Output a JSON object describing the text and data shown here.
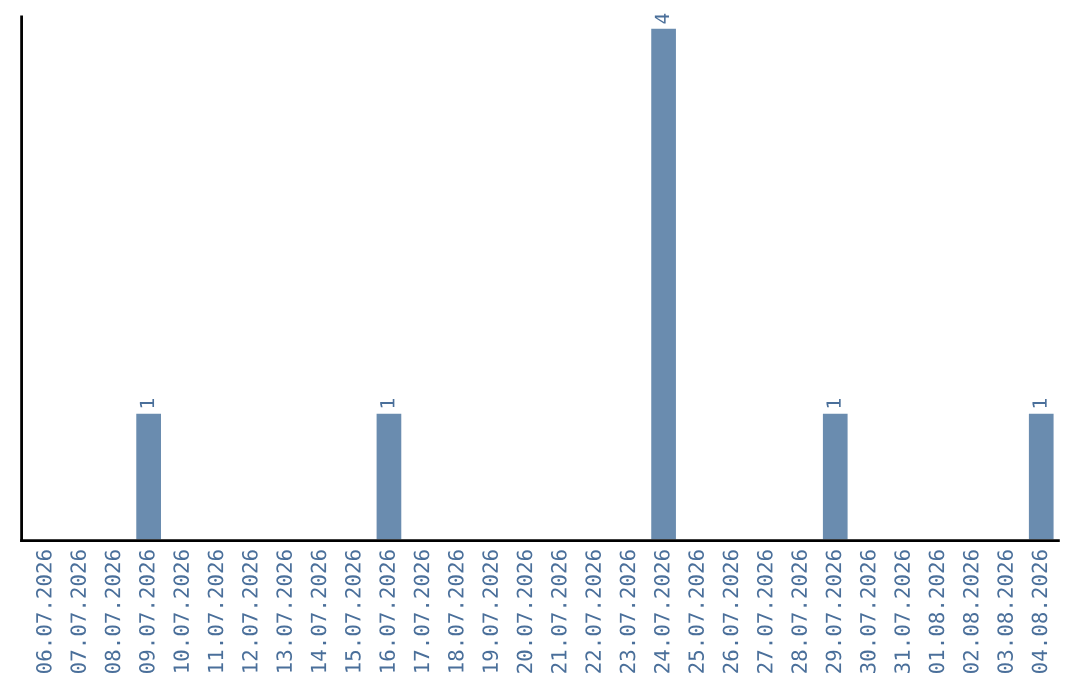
{
  "chart_data": {
    "type": "bar",
    "categories": [
      "06.07.2026",
      "07.07.2026",
      "08.07.2026",
      "09.07.2026",
      "10.07.2026",
      "11.07.2026",
      "12.07.2026",
      "13.07.2026",
      "14.07.2026",
      "15.07.2026",
      "16.07.2026",
      "17.07.2026",
      "18.07.2026",
      "19.07.2026",
      "20.07.2026",
      "21.07.2026",
      "22.07.2026",
      "23.07.2026",
      "24.07.2026",
      "25.07.2026",
      "26.07.2026",
      "27.07.2026",
      "28.07.2026",
      "29.07.2026",
      "30.07.2026",
      "31.07.2026",
      "01.08.2026",
      "02.08.2026",
      "03.08.2026",
      "04.08.2026"
    ],
    "values": [
      null,
      null,
      null,
      1,
      null,
      null,
      null,
      null,
      null,
      null,
      1,
      null,
      null,
      null,
      null,
      null,
      null,
      null,
      4,
      null,
      null,
      null,
      null,
      1,
      null,
      null,
      null,
      null,
      null,
      1
    ],
    "value_labels": [
      null,
      null,
      null,
      "1",
      null,
      null,
      null,
      null,
      null,
      null,
      "1",
      null,
      null,
      null,
      null,
      null,
      null,
      null,
      "4",
      null,
      null,
      null,
      null,
      "1",
      null,
      null,
      null,
      null,
      null,
      "1"
    ],
    "color": "#6a8caf",
    "tick_labels": "x",
    "grid": false,
    "legend": false
  }
}
